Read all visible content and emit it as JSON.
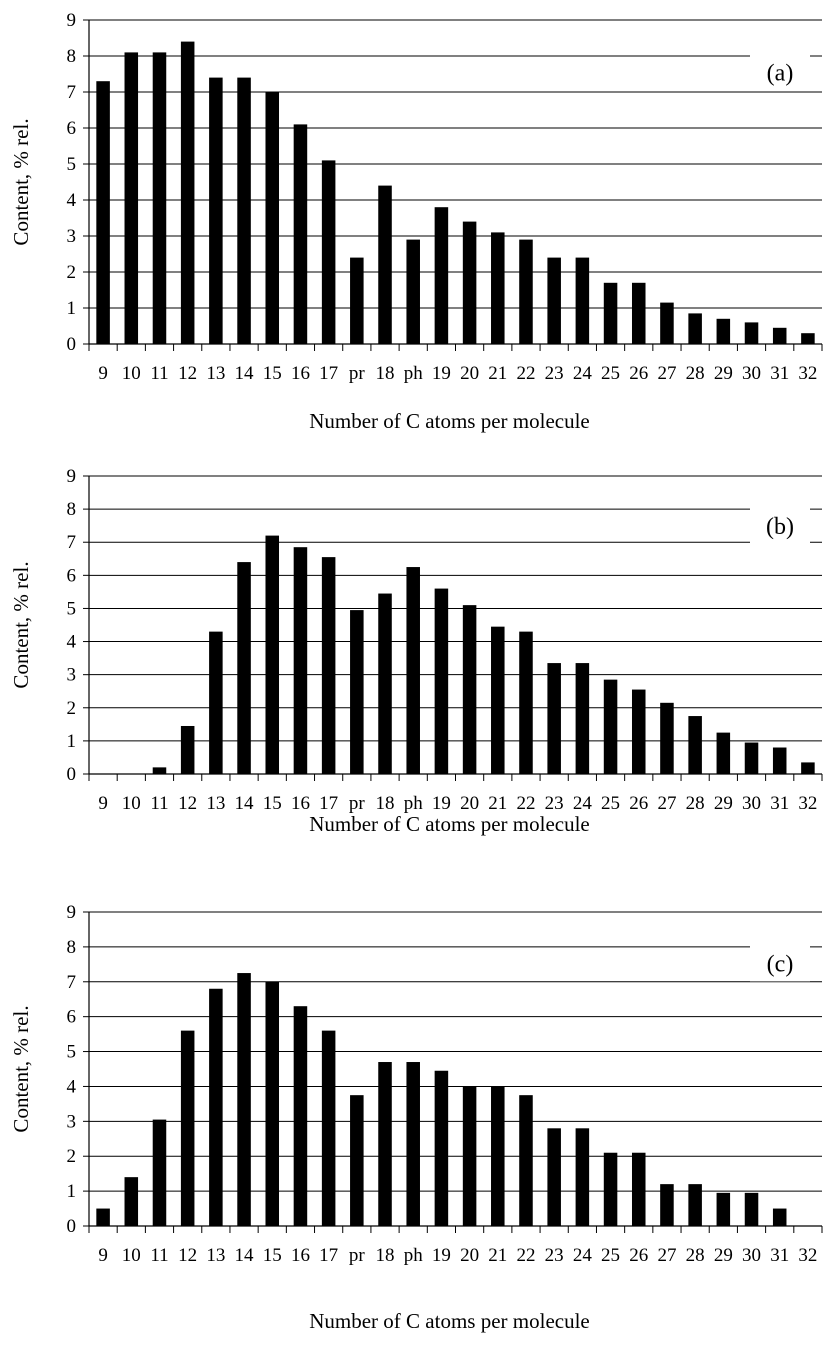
{
  "chart_data": [
    {
      "type": "bar",
      "panel_label": "(a)",
      "xlabel": "Number of C atoms per molecule",
      "ylabel": "Content, % rel.",
      "ylim": [
        0,
        9
      ],
      "yticks": [
        "0",
        "1",
        "2",
        "3",
        "4",
        "5",
        "6",
        "7",
        "8",
        "9"
      ],
      "grid": true,
      "categories": [
        "9",
        "10",
        "11",
        "12",
        "13",
        "14",
        "15",
        "16",
        "17",
        "pr",
        "18",
        "ph",
        "19",
        "20",
        "21",
        "22",
        "23",
        "24",
        "25",
        "26",
        "27",
        "28",
        "29",
        "30",
        "31",
        "32"
      ],
      "values": [
        7.3,
        8.1,
        8.1,
        8.4,
        7.4,
        7.4,
        7.0,
        6.1,
        5.1,
        2.4,
        4.4,
        2.9,
        3.8,
        3.4,
        3.1,
        2.9,
        2.4,
        2.4,
        1.7,
        1.7,
        1.15,
        0.85,
        0.7,
        0.6,
        0.45,
        0.3
      ]
    },
    {
      "type": "bar",
      "panel_label": "(b)",
      "xlabel": "Number of C atoms per molecule",
      "ylabel": "Content, % rel.",
      "ylim": [
        0,
        9
      ],
      "yticks": [
        "0",
        "1",
        "2",
        "3",
        "4",
        "5",
        "6",
        "7",
        "8",
        "9"
      ],
      "grid": true,
      "categories": [
        "9",
        "10",
        "11",
        "12",
        "13",
        "14",
        "15",
        "16",
        "17",
        "pr",
        "18",
        "ph",
        "19",
        "20",
        "21",
        "22",
        "23",
        "24",
        "25",
        "26",
        "27",
        "28",
        "29",
        "30",
        "31",
        "32"
      ],
      "values": [
        0.0,
        0.0,
        0.2,
        1.45,
        4.3,
        6.4,
        7.2,
        6.85,
        6.55,
        4.95,
        5.45,
        6.25,
        5.6,
        5.1,
        4.45,
        4.3,
        3.35,
        3.35,
        2.85,
        2.55,
        2.15,
        1.75,
        1.25,
        0.95,
        0.8,
        0.35
      ]
    },
    {
      "type": "bar",
      "panel_label": "(c)",
      "xlabel": "Number of C atoms per molecule",
      "ylabel": "Content, % rel.",
      "ylim": [
        0,
        9
      ],
      "yticks": [
        "0",
        "1",
        "2",
        "3",
        "4",
        "5",
        "6",
        "7",
        "8",
        "9"
      ],
      "grid": true,
      "categories": [
        "9",
        "10",
        "11",
        "12",
        "13",
        "14",
        "15",
        "16",
        "17",
        "pr",
        "18",
        "ph",
        "19",
        "20",
        "21",
        "22",
        "23",
        "24",
        "25",
        "26",
        "27",
        "28",
        "29",
        "30",
        "31",
        "32"
      ],
      "values": [
        0.5,
        1.4,
        3.05,
        5.6,
        6.8,
        7.25,
        7.0,
        6.3,
        5.6,
        3.75,
        4.7,
        4.7,
        4.45,
        4.0,
        4.0,
        3.75,
        2.8,
        2.8,
        2.1,
        2.1,
        1.2,
        1.2,
        0.95,
        0.95,
        0.5,
        0.0
      ]
    }
  ]
}
